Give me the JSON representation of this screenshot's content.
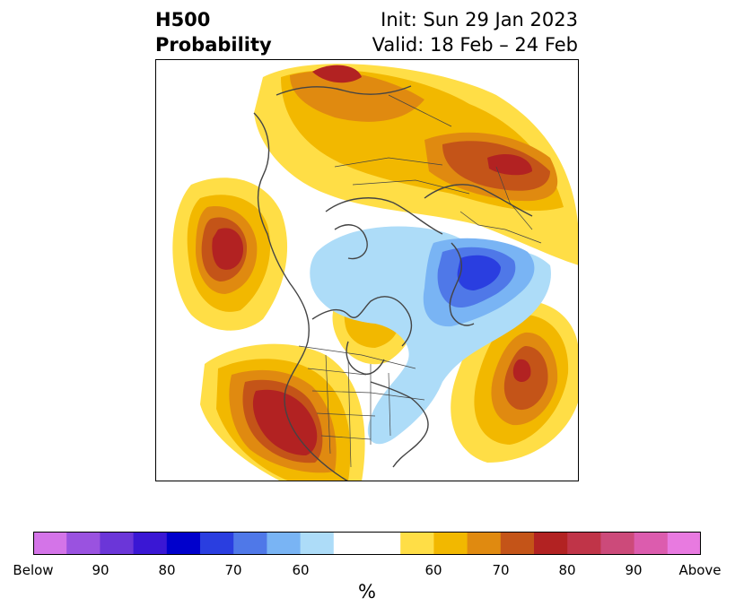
{
  "title": {
    "left_line1": "H500",
    "left_line2": "Probability",
    "init": "Init: Sun 29 Jan 2023",
    "valid": "Valid: 18 Feb – 24 Feb"
  },
  "colorbar": {
    "unit": "%",
    "colors": [
      "#d474e8",
      "#9a52e0",
      "#6b36d8",
      "#3a17d4",
      "#0000cc",
      "#2a3ee0",
      "#4f78e8",
      "#79b4f4",
      "#addcf8",
      "#ffffff",
      "#ffde46",
      "#f2b800",
      "#e08a10",
      "#c45418",
      "#b22222",
      "#c03448",
      "#cc4a7a",
      "#dc5cae",
      "#e87ae0"
    ],
    "tick_labels": [
      "Below",
      "90",
      "80",
      "70",
      "60",
      "60",
      "70",
      "80",
      "90",
      "Above"
    ]
  }
}
